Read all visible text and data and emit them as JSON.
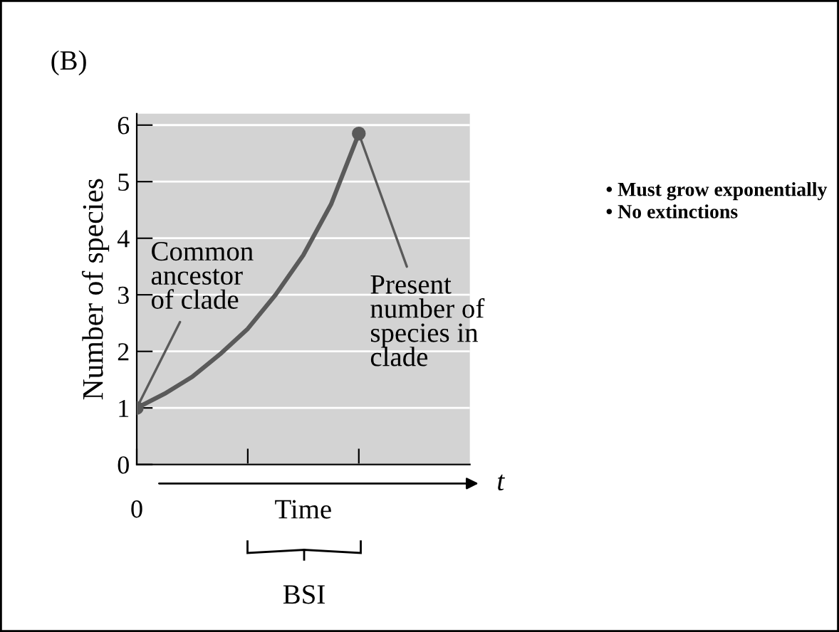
{
  "chart_data": {
    "type": "line",
    "xlabel": "Time",
    "ylabel": "Number of species",
    "categories": [
      null,
      null,
      null,
      null,
      null,
      null,
      null,
      null,
      null
    ],
    "series": [
      {
        "color": "#5a5a5a",
        "values": [
          1,
          1.25,
          1.55,
          1.95,
          2.4,
          3.0,
          3.7,
          4.6,
          5.85
        ]
      },
      {
        "type": "scatter",
        "color": "#5a5a5a",
        "values": [
          1,
          null,
          null,
          null,
          null,
          null,
          null,
          null,
          5.85
        ]
      }
    ],
    "ylim": [
      0,
      6.2
    ],
    "yticks": [
      0,
      1,
      2,
      3,
      4,
      5,
      6
    ],
    "grid": "y",
    "annotations": [
      "(B)",
      "Common\nancestor\nof clade",
      "Present\nnumber of\nspecies in\nclade",
      "0",
      "t",
      "BSI",
      "• Must grow exponentially\n• No extinctions"
    ]
  }
}
